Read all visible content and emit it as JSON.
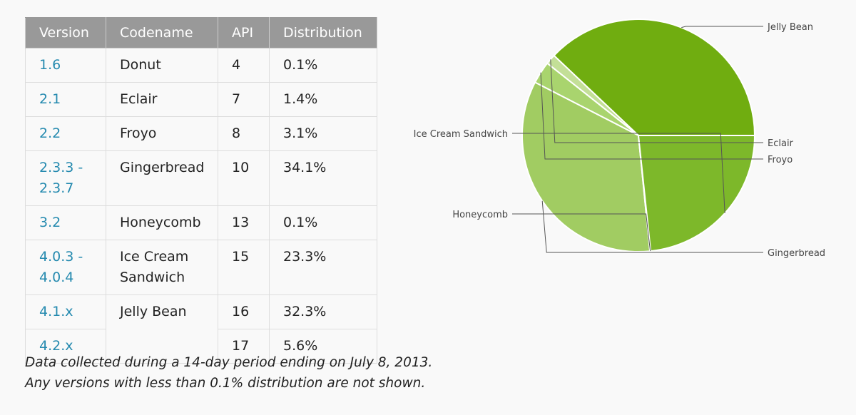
{
  "table": {
    "headers": [
      "Version",
      "Codename",
      "API",
      "Distribution"
    ],
    "rows": [
      {
        "version": "1.6",
        "codename": "Donut",
        "api": "4",
        "distribution": "0.1%"
      },
      {
        "version": "2.1",
        "codename": "Eclair",
        "api": "7",
        "distribution": "1.4%"
      },
      {
        "version": "2.2",
        "codename": "Froyo",
        "api": "8",
        "distribution": "3.1%"
      },
      {
        "version": "2.3.3 -\n2.3.7",
        "codename": "Gingerbread",
        "api": "10",
        "distribution": "34.1%"
      },
      {
        "version": "3.2",
        "codename": "Honeycomb",
        "api": "13",
        "distribution": "0.1%"
      },
      {
        "version": "4.0.3 -\n4.0.4",
        "codename": "Ice Cream\nSandwich",
        "api": "15",
        "distribution": "23.3%"
      },
      {
        "version": "4.1.x",
        "codename": "Jelly Bean",
        "api": "16",
        "distribution": "32.3%"
      },
      {
        "version": "4.2.x",
        "codename": "Jelly Bean",
        "api": "17",
        "distribution": "5.6%"
      }
    ]
  },
  "note": {
    "line1": "Data collected during a 14-day period ending on July 8, 2013.",
    "line2": "Any versions with less than 0.1% distribution are not shown."
  },
  "colors": {
    "header_bg": "#999999",
    "version_link": "#258aaf",
    "pie": [
      "#70ad10",
      "#c3df97",
      "#a9d46e",
      "#a1cc62",
      "#79b320",
      "#7db82a"
    ]
  },
  "chart_data": {
    "type": "pie",
    "slices": [
      {
        "label": "Jelly Bean",
        "value": 37.9
      },
      {
        "label": "Eclair",
        "value": 1.4
      },
      {
        "label": "Froyo",
        "value": 3.1
      },
      {
        "label": "Gingerbread",
        "value": 34.1
      },
      {
        "label": "Honeycomb",
        "value": 0.1
      },
      {
        "label": "Ice Cream Sandwich",
        "value": 23.3
      }
    ]
  }
}
